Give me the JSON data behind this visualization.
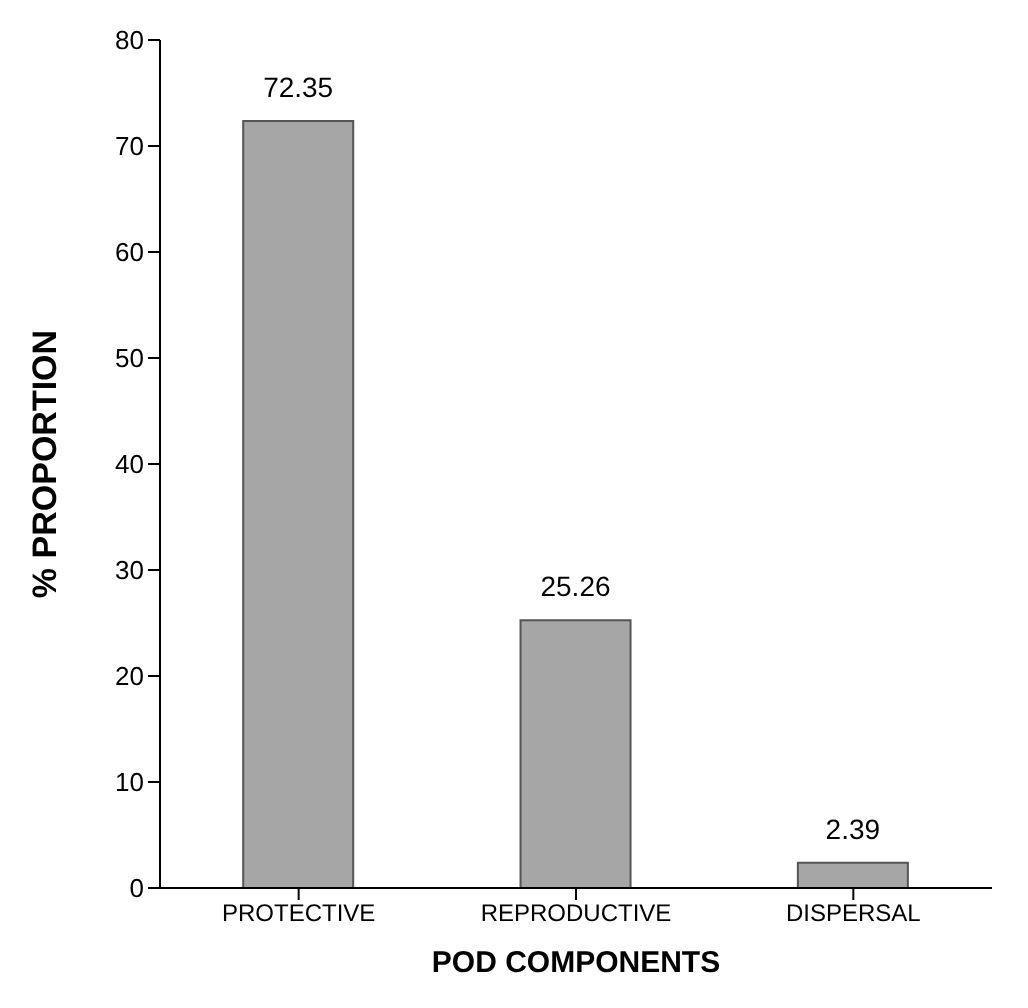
{
  "chart_data": {
    "type": "bar",
    "xlabel": "POD COMPONENTS",
    "ylabel": "% PROPORTION",
    "categories": [
      "PROTECTIVE",
      "REPRODUCTIVE",
      "DISPERSAL"
    ],
    "values": [
      72.35,
      25.26,
      2.39
    ],
    "color": "#a6a6a6",
    "ylim": [
      0,
      80
    ],
    "yticks": [
      0,
      10,
      20,
      30,
      40,
      50,
      60,
      70,
      80
    ],
    "grid": false,
    "data_labels": true
  }
}
